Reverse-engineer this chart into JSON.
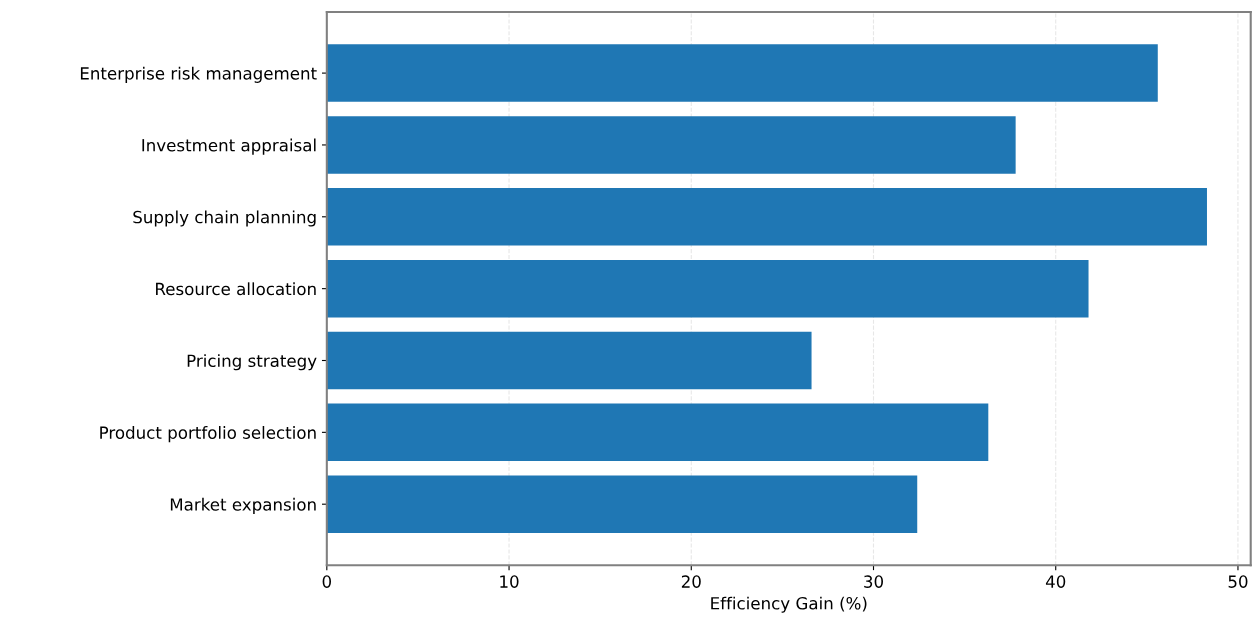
{
  "chart_data": {
    "type": "bar",
    "orientation": "horizontal",
    "xlabel": "Efficiency Gain (%)",
    "categories": [
      "Enterprise risk management",
      "Investment appraisal",
      "Supply chain planning",
      "Resource allocation",
      "Pricing strategy",
      "Product portfolio selection",
      "Market expansion"
    ],
    "values": [
      45.6,
      37.8,
      48.3,
      41.8,
      26.6,
      36.3,
      32.4
    ],
    "color": "#1f77b4",
    "xlim": [
      0,
      50.7
    ],
    "xticks": [
      0,
      10,
      20,
      30,
      40,
      50
    ],
    "grid": "x"
  }
}
